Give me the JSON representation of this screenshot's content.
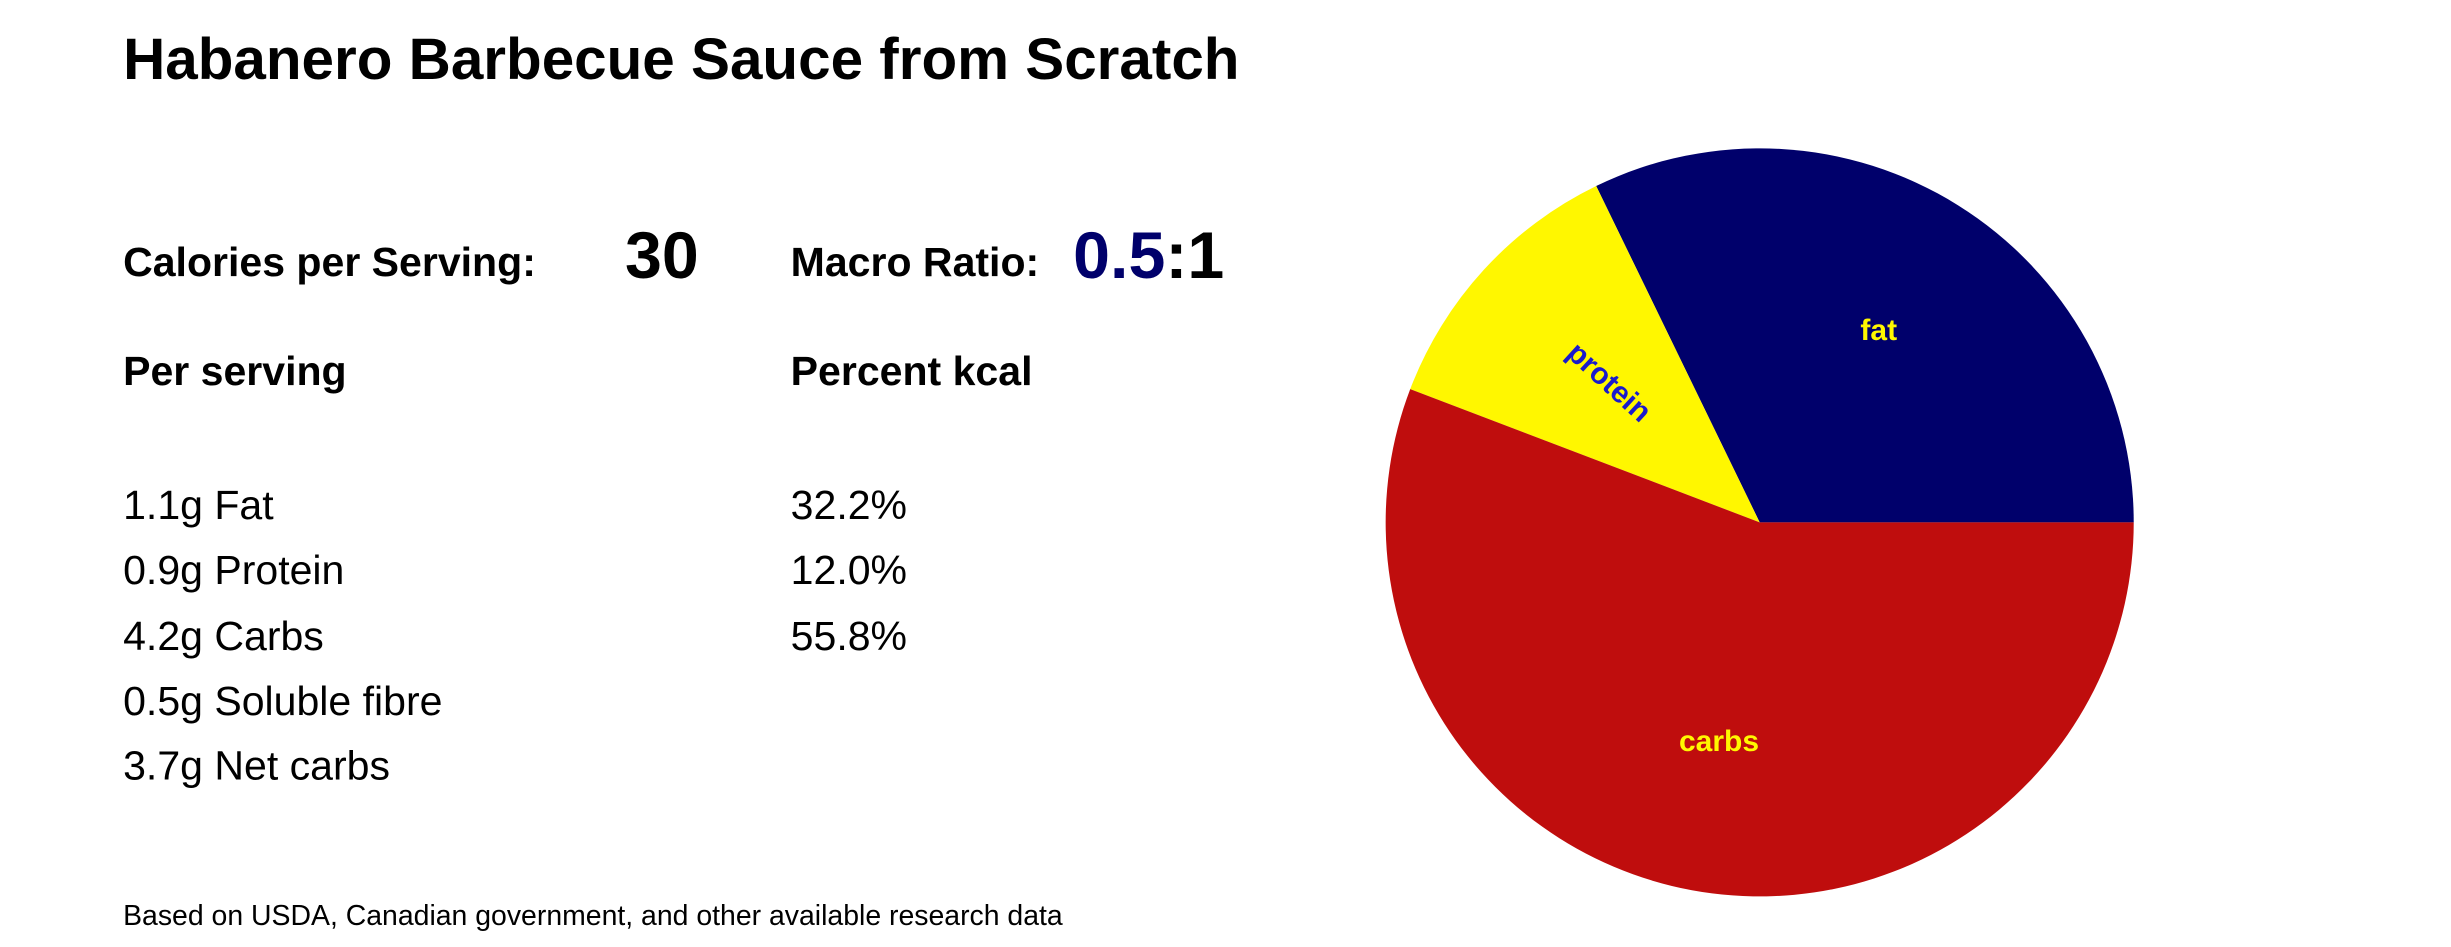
{
  "title": "Habanero Barbecue Sauce from Scratch",
  "calories": {
    "label": "Calories per Serving:",
    "value": "30"
  },
  "macro_ratio": {
    "label": "Macro Ratio:",
    "value": "0.5",
    "suffix": ":1"
  },
  "per_serving": {
    "heading": "Per serving",
    "items": [
      "1.1g Fat",
      "0.9g Protein",
      "4.2g Carbs",
      "0.5g Soluble fibre",
      "3.7g Net carbs"
    ]
  },
  "percent_kcal": {
    "heading": "Percent kcal",
    "items": [
      "32.2%",
      "12.0%",
      "55.8%"
    ]
  },
  "footnote": "Based on USDA, Canadian government, and other available research data",
  "colors": {
    "fat": "#00006b",
    "protein": "#fff700",
    "carbs": "#bf0d0d",
    "ratio_accent": "#00006b",
    "label_on_dark": "#fff700",
    "label_on_light": "#1a1acc"
  },
  "chart_data": {
    "type": "pie",
    "title": "",
    "slices": [
      {
        "label": "fat",
        "value": 32.2,
        "color": "#00006b",
        "label_color": "#fff700"
      },
      {
        "label": "protein",
        "value": 12.0,
        "color": "#fff700",
        "label_color": "#1a1acc"
      },
      {
        "label": "carbs",
        "value": 55.8,
        "color": "#bf0d0d",
        "label_color": "#fff700"
      }
    ],
    "start_angle_deg": 0,
    "direction": "counterclockwise",
    "legend": "none"
  }
}
